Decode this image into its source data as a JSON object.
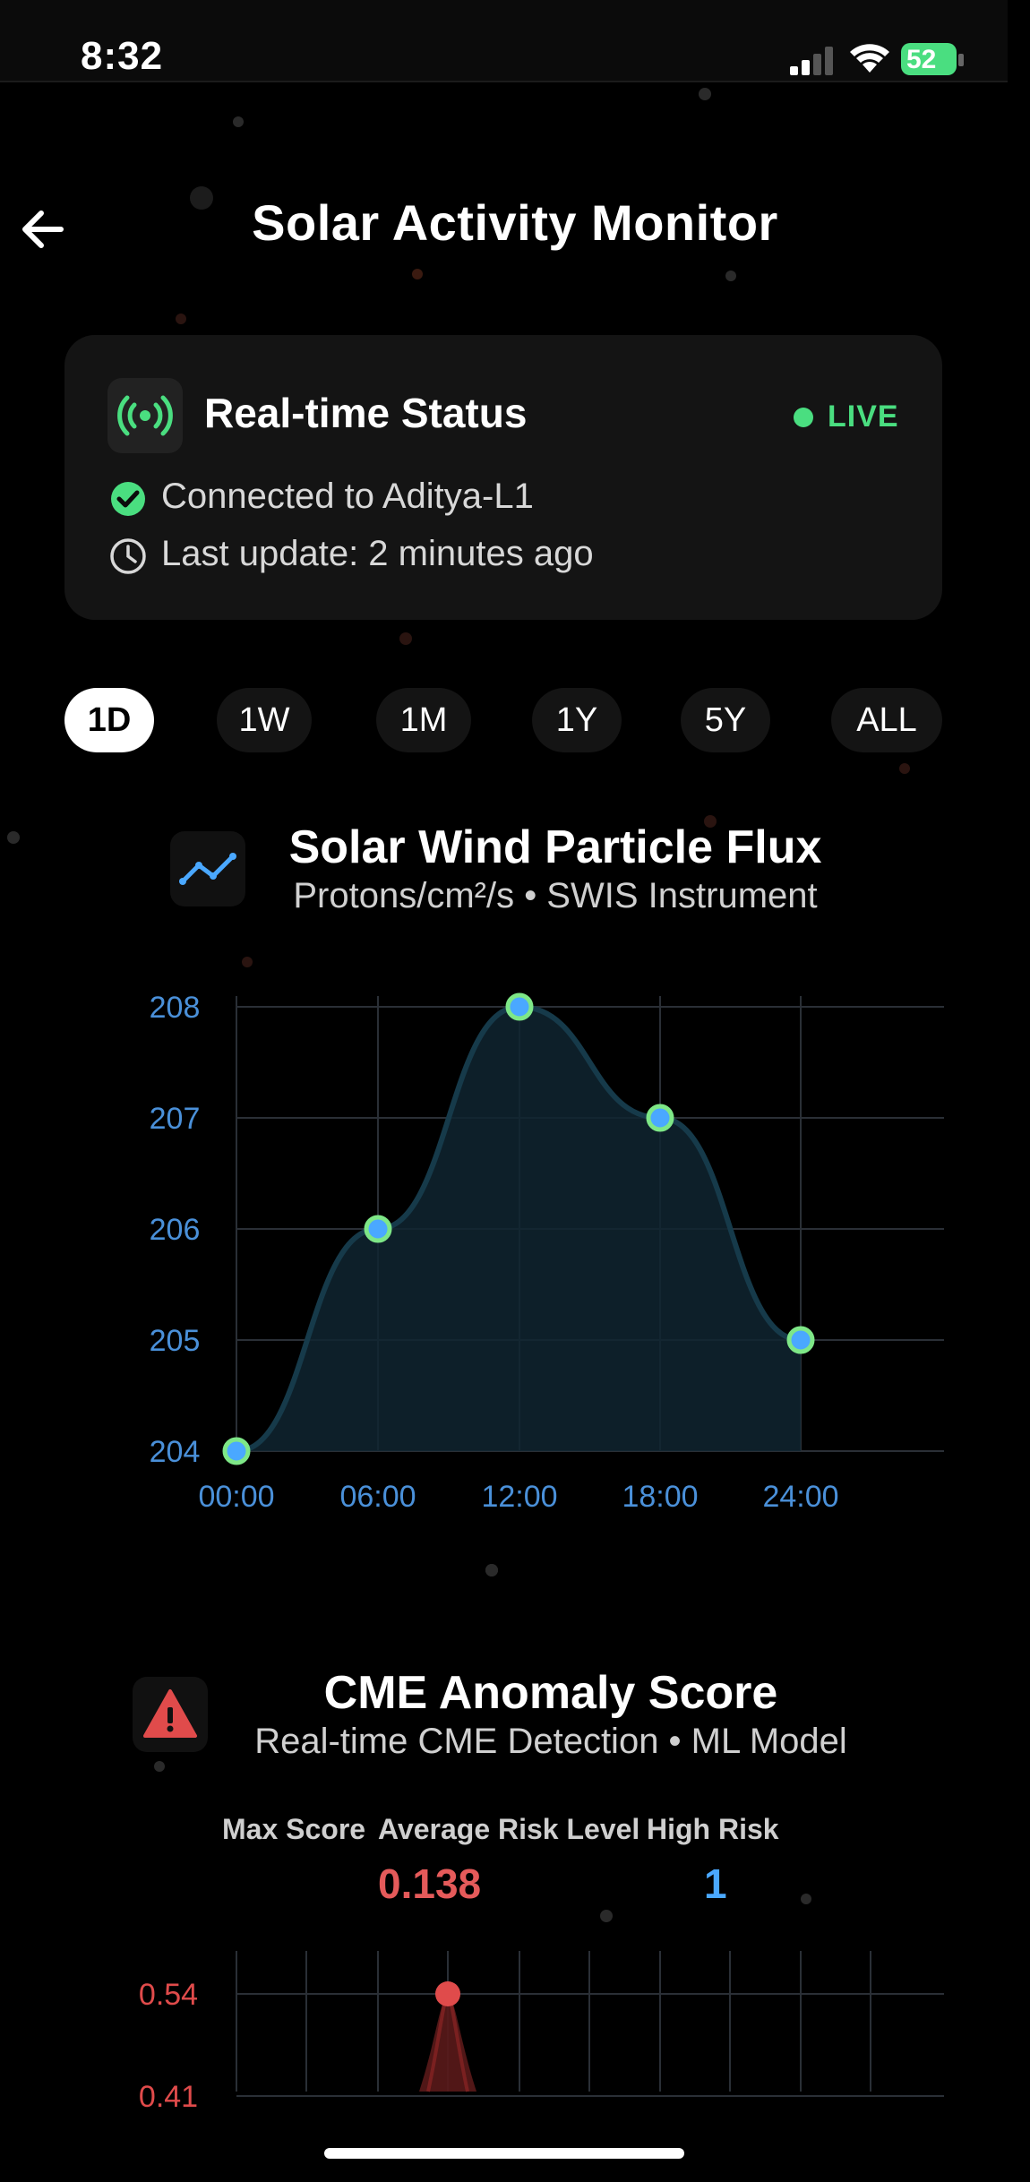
{
  "status_bar": {
    "time": "8:32",
    "battery": "52"
  },
  "header": {
    "title": "Solar Activity Monitor"
  },
  "status_card": {
    "title": "Real-time Status",
    "live": "LIVE",
    "connected": "Connected to Aditya-L1",
    "last_update": "Last update: 2 minutes ago"
  },
  "time_filters": [
    "1D",
    "1W",
    "1M",
    "1Y",
    "5Y",
    "ALL"
  ],
  "flux_section": {
    "title": "Solar Wind Particle Flux",
    "subtitle": "Protons/cm²/s • SWIS Instrument"
  },
  "cme_section": {
    "title": "CME Anomaly Score",
    "subtitle": "Real-time CME Detection • ML Model",
    "stats": {
      "max_score_label": "Max Score",
      "average_label": "Average",
      "risk_level_label": "Risk Level",
      "high_risk_label": "High Risk",
      "average_value": "0.138",
      "high_risk_value": "1"
    }
  },
  "colors": {
    "accent_green": "#4ade80",
    "axis_blue": "#4a90d9",
    "risk_red": "#e04b4b"
  },
  "chart_data": [
    {
      "type": "line",
      "x": [
        "00:00",
        "06:00",
        "12:00",
        "18:00",
        "24:00"
      ],
      "series": [
        {
          "values": [
            204,
            206,
            208,
            207,
            205
          ]
        }
      ],
      "yticks": [
        204,
        205,
        206,
        207,
        208
      ],
      "ylim": [
        204,
        208
      ],
      "grid": true
    },
    {
      "type": "area",
      "yticks": [
        "0.54",
        "0.41"
      ],
      "peak": 0.54,
      "grid": true
    }
  ]
}
